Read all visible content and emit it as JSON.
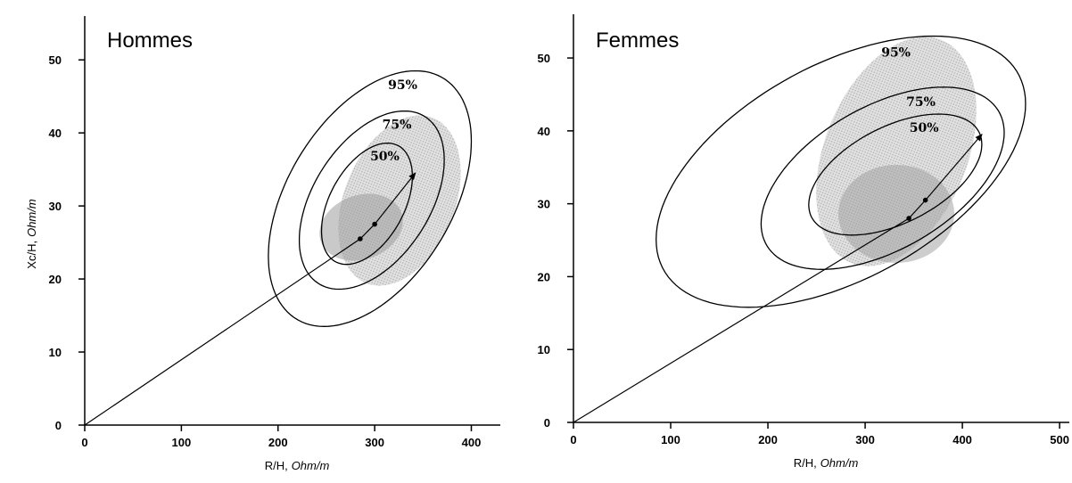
{
  "chart_data": [
    {
      "type": "tolerance_ellipse",
      "title": "Hommes",
      "x_label": "R/H,",
      "x_label_unit": "Ohm/m",
      "y_label": "Xc/H,",
      "y_label_unit": "Ohm/m",
      "xlim": [
        0,
        430
      ],
      "ylim": [
        0,
        56
      ],
      "xticks": [
        0,
        100,
        200,
        300,
        400
      ],
      "yticks": [
        0,
        10,
        20,
        30,
        40,
        50
      ],
      "color": "#000000",
      "ellipses": [
        {
          "name": "95%",
          "center": [
            295,
            31
          ],
          "sx": 105,
          "sy": 17.5,
          "r": 0.45
        },
        {
          "name": "75%",
          "center": [
            297,
            30.8
          ],
          "sx": 75,
          "sy": 12.2,
          "r": 0.45
        },
        {
          "name": "50%",
          "center": [
            292,
            30.3
          ],
          "sx": 47,
          "sy": 8.3,
          "r": 0.45
        }
      ],
      "vector": {
        "x": [
          0,
          285,
          300,
          342
        ],
        "values": [
          0,
          25.5,
          27.5,
          34.5
        ]
      }
    },
    {
      "type": "tolerance_ellipse",
      "title": "Femmes",
      "x_label": "R/H,",
      "x_label_unit": "Ohm/m",
      "xlim": [
        0,
        510
      ],
      "ylim": [
        0,
        56
      ],
      "xticks": [
        0,
        100,
        200,
        300,
        400,
        500
      ],
      "yticks": [
        0,
        10,
        20,
        30,
        40,
        50
      ],
      "color": "#000000",
      "ellipses": [
        {
          "name": "95%",
          "center": [
            275,
            34.4
          ],
          "sx": 190,
          "sy": 18.6,
          "r": 0.5
        },
        {
          "name": "75%",
          "center": [
            318,
            33.5
          ],
          "sx": 125,
          "sy": 12.5,
          "r": 0.5
        },
        {
          "name": "50%",
          "center": [
            331,
            34
          ],
          "sx": 89,
          "sy": 8.3,
          "r": 0.5
        }
      ],
      "vector": {
        "x": [
          0,
          345,
          362,
          420
        ],
        "values": [
          0,
          28,
          30.5,
          39.5
        ]
      }
    }
  ]
}
